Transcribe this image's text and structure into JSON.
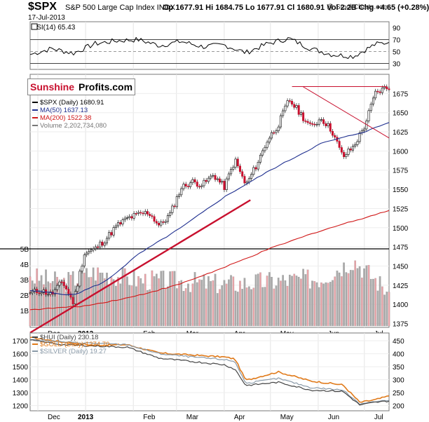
{
  "header": {
    "symbol": "$SPX",
    "name": "S&P 500 Large Cap Index INDX",
    "date": "17-Jul-2013",
    "quote": "Op 1677.91  Hi 1684.75  Lo 1677.91  Cl 1680.91  Vol 2.2B  Chg +4.65 (+0.28%)",
    "credit": "@ StockCharts.com"
  },
  "logo": {
    "part1": "Sunshine",
    "part2": "Profits.com"
  },
  "colors": {
    "price_up": "#000000",
    "price_down": "#c8102e",
    "ma50": "#1f2f8f",
    "ma200": "#d01818",
    "volume_up": "#a9a9a9",
    "volume_down": "#e9a3a8",
    "trend": "#c8102e",
    "gold": "#e07a1a",
    "silver": "#8a9aa8",
    "hui": "#444444",
    "rsi": "#000000"
  },
  "chart_data": [
    {
      "type": "line",
      "panel": "RSI",
      "legend": "RSI(14) 65.43",
      "ylim": [
        20,
        100
      ],
      "y_ticks": [
        90,
        70,
        50,
        30
      ],
      "reference_lines": [
        70,
        30
      ],
      "x": [
        "2012-11-26",
        "2012-12-10",
        "2012-12-24",
        "2013-01-07",
        "2013-01-21",
        "2013-02-04",
        "2013-02-18",
        "2013-03-04",
        "2013-03-18",
        "2013-04-01",
        "2013-04-15",
        "2013-04-29",
        "2013-05-13",
        "2013-05-27",
        "2013-06-10",
        "2013-06-24",
        "2013-07-08",
        "2013-07-17"
      ],
      "values": [
        45,
        55,
        47,
        63,
        68,
        70,
        60,
        67,
        58,
        61,
        48,
        63,
        72,
        55,
        45,
        42,
        62,
        65.43
      ]
    },
    {
      "type": "line",
      "panel": "price",
      "legend": [
        {
          "name": "$SPX (Daily) 1680.91"
        },
        {
          "name": "MA(50) 1637.13"
        },
        {
          "name": "MA(200) 1522.38"
        },
        {
          "name": "Volume 2,202,734,080"
        }
      ],
      "ylim": [
        1370,
        1700
      ],
      "y_ticks": [
        1675,
        1650,
        1625,
        1600,
        1575,
        1550,
        1525,
        1500,
        1475,
        1450,
        1425,
        1400,
        1375
      ],
      "volume_ticks": [
        "5B",
        "4B",
        "3B",
        "2B",
        "1B"
      ],
      "x_tick_labels": [
        "Dec",
        "2013",
        "Feb",
        "Mar",
        "Apr",
        "May",
        "Jun",
        "Jul"
      ],
      "x_ticks": [
        "2012-12-01",
        "2013-01-01",
        "2013-02-01",
        "2013-03-01",
        "2013-04-01",
        "2013-05-01",
        "2013-06-01",
        "2013-07-01"
      ],
      "series": [
        {
          "name": "$SPX",
          "x": [
            "2012-11-26",
            "2012-12-03",
            "2012-12-10",
            "2012-12-17",
            "2012-12-24",
            "2012-12-31",
            "2013-01-07",
            "2013-01-14",
            "2013-01-21",
            "2013-01-28",
            "2013-02-04",
            "2013-02-11",
            "2013-02-18",
            "2013-02-25",
            "2013-03-04",
            "2013-03-11",
            "2013-03-18",
            "2013-03-25",
            "2013-04-01",
            "2013-04-08",
            "2013-04-15",
            "2013-04-22",
            "2013-04-29",
            "2013-05-06",
            "2013-05-13",
            "2013-05-20",
            "2013-05-27",
            "2013-06-03",
            "2013-06-10",
            "2013-06-17",
            "2013-06-24",
            "2013-07-01",
            "2013-07-08",
            "2013-07-15",
            "2013-07-17"
          ],
          "values": [
            1415,
            1418,
            1413,
            1430,
            1402,
            1466,
            1472,
            1485,
            1502,
            1512,
            1517,
            1520,
            1502,
            1518,
            1552,
            1560,
            1556,
            1569,
            1553,
            1588,
            1555,
            1582,
            1614,
            1634,
            1667,
            1650,
            1631,
            1643,
            1626,
            1592,
            1606,
            1632,
            1675,
            1683,
            1680.91
          ]
        },
        {
          "name": "MA(50)",
          "x": [
            "2012-11-26",
            "2012-12-24",
            "2013-01-14",
            "2013-02-04",
            "2013-03-04",
            "2013-04-01",
            "2013-05-01",
            "2013-06-03",
            "2013-07-01",
            "2013-07-17"
          ],
          "values": [
            1418,
            1412,
            1430,
            1465,
            1500,
            1540,
            1575,
            1610,
            1625,
            1637.13
          ]
        },
        {
          "name": "MA(200)",
          "x": [
            "2012-11-26",
            "2013-01-01",
            "2013-02-01",
            "2013-03-01",
            "2013-04-01",
            "2013-05-01",
            "2013-06-01",
            "2013-07-01",
            "2013-07-17"
          ],
          "values": [
            1393,
            1398,
            1410,
            1425,
            1448,
            1473,
            1495,
            1513,
            1522.38
          ]
        }
      ],
      "volume": {
        "x": [
          "2012-11-26",
          "2012-12-17",
          "2013-01-07",
          "2013-02-04",
          "2013-03-04",
          "2013-04-01",
          "2013-05-01",
          "2013-06-03",
          "2013-06-24",
          "2013-07-17"
        ],
        "values": [
          3.2,
          2.8,
          3.5,
          3.0,
          2.9,
          2.7,
          2.9,
          3.1,
          4.3,
          2.2
        ]
      },
      "annotations": {
        "resistance": 1684,
        "trendlines": [
          {
            "from": [
              "2012-11-26",
              1363
            ],
            "to": [
              "2013-04-18",
              1536
            ]
          },
          {
            "from": [
              "2013-05-22",
              1684
            ],
            "to": [
              "2013-07-17",
              1617
            ]
          }
        ],
        "volume_line": "5B"
      }
    },
    {
      "type": "line",
      "panel": "HUI",
      "legend": [
        {
          "name": "$HUI (Daily) 230.18"
        },
        {
          "name": "$GOLD (Daily) 1274.70"
        },
        {
          "name": "$SILVER (Daily) 19.27"
        }
      ],
      "y_left_ticks": [
        1700,
        1600,
        1500,
        1400,
        1300,
        1200
      ],
      "y_right_ticks": [
        450,
        400,
        350,
        300,
        250,
        200
      ],
      "ylim": [
        1160,
        1760
      ],
      "x_tick_labels": [
        "Dec",
        "2013",
        "Feb",
        "Mar",
        "Apr",
        "May",
        "Jun",
        "Jul"
      ],
      "series": [
        {
          "name": "$GOLD",
          "x": [
            "2012-11-26",
            "2012-12-17",
            "2013-01-07",
            "2013-01-28",
            "2013-02-18",
            "2013-03-11",
            "2013-04-01",
            "2013-04-08",
            "2013-04-15",
            "2013-05-06",
            "2013-05-27",
            "2013-06-17",
            "2013-06-28",
            "2013-07-08",
            "2013-07-17"
          ],
          "values": [
            1725,
            1690,
            1665,
            1670,
            1605,
            1590,
            1575,
            1560,
            1395,
            1460,
            1390,
            1360,
            1225,
            1245,
            1274.7
          ]
        },
        {
          "name": "$SILVER",
          "x": [
            "2012-11-26",
            "2012-12-17",
            "2013-01-07",
            "2013-01-28",
            "2013-02-18",
            "2013-03-11",
            "2013-04-01",
            "2013-04-08",
            "2013-04-15",
            "2013-05-06",
            "2013-05-27",
            "2013-06-17",
            "2013-06-28",
            "2013-07-08",
            "2013-07-17"
          ],
          "values": [
            1710,
            1690,
            1680,
            1670,
            1600,
            1575,
            1555,
            1540,
            1370,
            1410,
            1340,
            1320,
            1215,
            1230,
            1240
          ]
        },
        {
          "name": "$HUI",
          "x": [
            "2012-11-26",
            "2012-12-17",
            "2013-01-07",
            "2013-01-28",
            "2013-02-18",
            "2013-03-11",
            "2013-04-01",
            "2013-04-08",
            "2013-04-15",
            "2013-05-06",
            "2013-05-27",
            "2013-06-17",
            "2013-06-28",
            "2013-07-08",
            "2013-07-17"
          ],
          "values": [
            1705,
            1670,
            1660,
            1650,
            1565,
            1540,
            1515,
            1480,
            1355,
            1380,
            1320,
            1310,
            1205,
            1225,
            1235
          ]
        }
      ]
    }
  ]
}
